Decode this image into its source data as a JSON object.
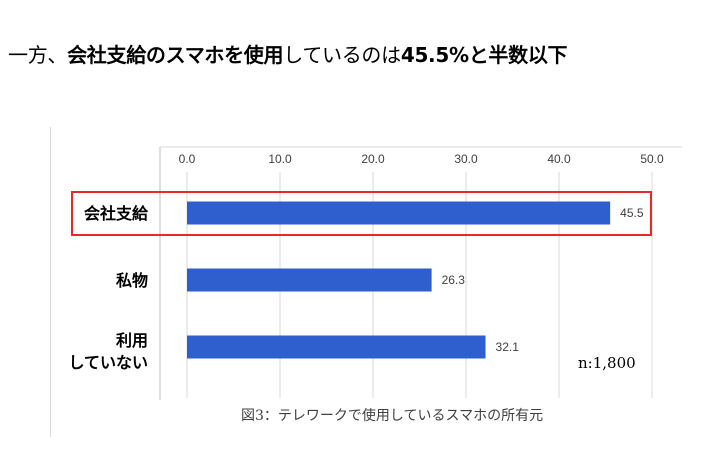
{
  "headline": {
    "part1": "一方、",
    "part2": "会社支給のスマホを使用",
    "part3": "しているのは",
    "part4": "45.5%と半数以下"
  },
  "caption": "図3：テレワークで使用しているスマホの所有元",
  "chart_data": {
    "type": "bar",
    "orientation": "horizontal",
    "categories": [
      "会社支給",
      "私物",
      "利用\nしていない"
    ],
    "values": [
      45.5,
      26.3,
      32.1
    ],
    "xlim": [
      0,
      50
    ],
    "xticks": [
      "0.0",
      "10.0",
      "20.0",
      "30.0",
      "40.0",
      "50.0"
    ],
    "axis_position": "top",
    "grid": true,
    "value_labels": [
      "45.5",
      "26.3",
      "32.1"
    ],
    "annotation": "n:1,800",
    "highlight_category": "会社支給",
    "colors": {
      "bar": "#2f5fcf",
      "highlight": "#e32b2b",
      "grid": "#d9d9d9"
    }
  }
}
